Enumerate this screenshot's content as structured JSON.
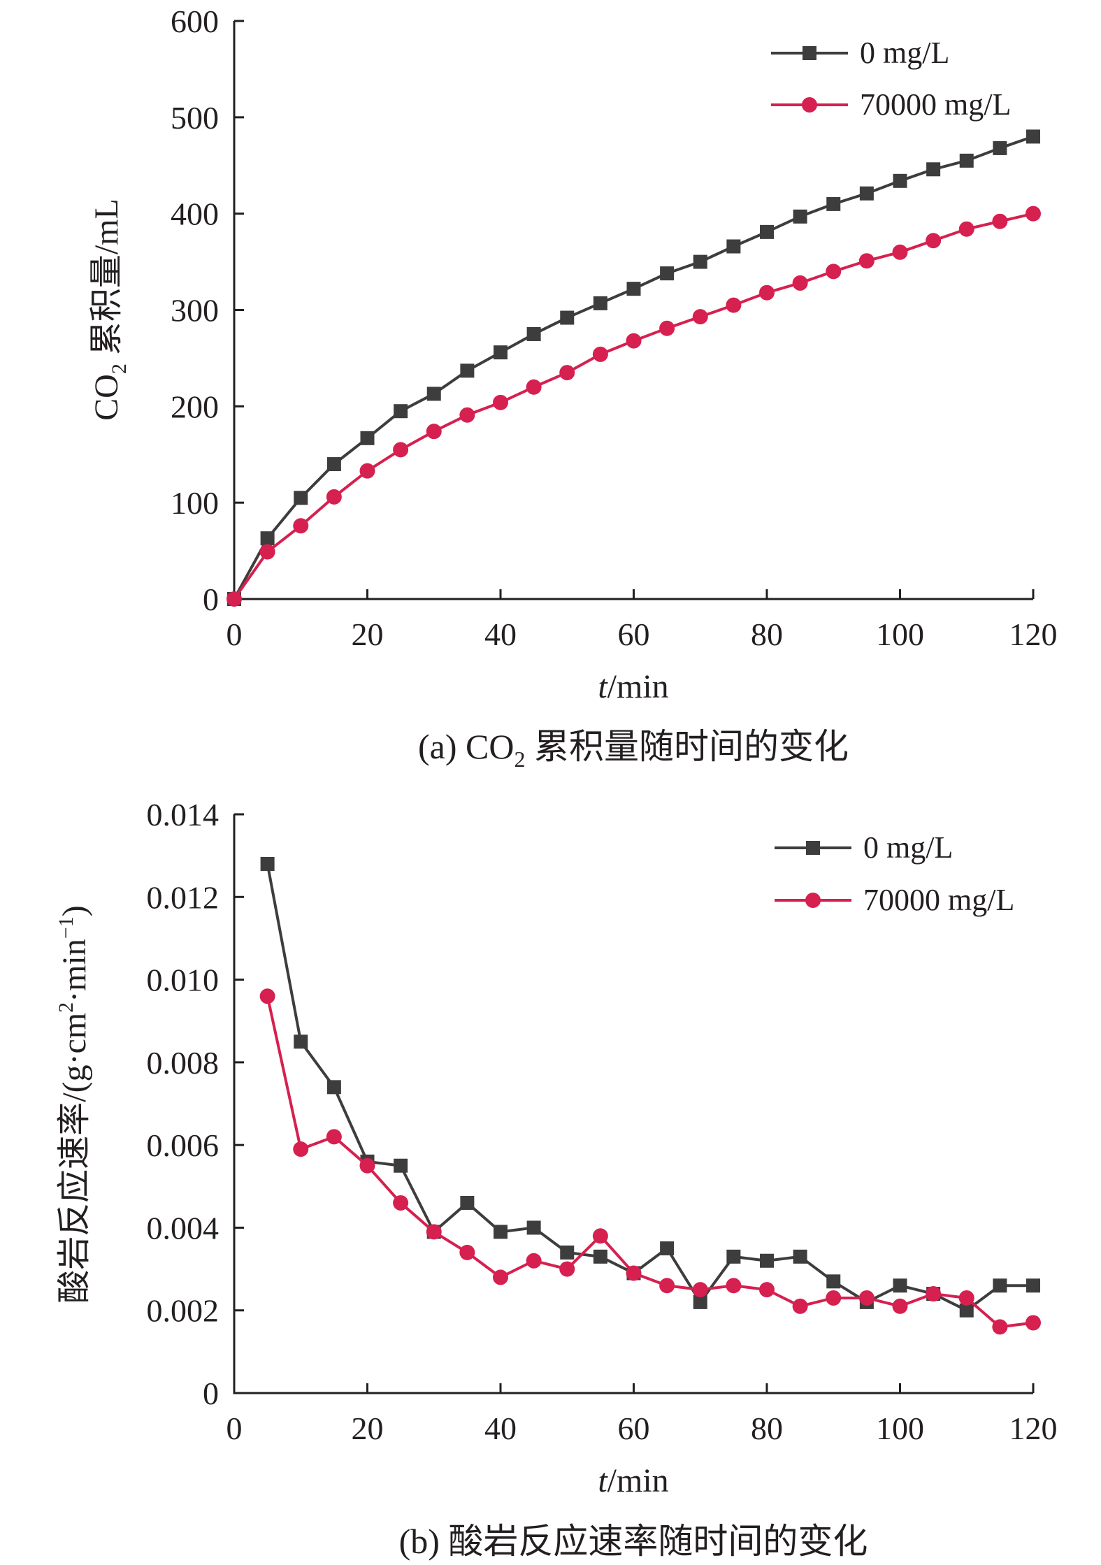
{
  "chart_data": [
    {
      "type": "line",
      "caption_prefix": "(a) CO",
      "caption_sub": "2",
      "caption_rest": " 累积量随时间的变化",
      "ylabel_prefix": "CO",
      "ylabel_sub": "2",
      "ylabel_rest": " 累积量/mL",
      "xlabel_italic": "t",
      "xlabel_rest": "/min",
      "xlim": [
        0,
        120
      ],
      "ylim": [
        0,
        600
      ],
      "xticks": [
        "0",
        "20",
        "40",
        "60",
        "80",
        "100",
        "120"
      ],
      "yticks": [
        "0",
        "100",
        "200",
        "300",
        "400",
        "500",
        "600"
      ],
      "legend_position": "top-right",
      "grid": false,
      "x": [
        0,
        5,
        10,
        15,
        20,
        25,
        30,
        35,
        40,
        45,
        50,
        55,
        60,
        65,
        70,
        75,
        80,
        85,
        90,
        95,
        100,
        105,
        110,
        115,
        120
      ],
      "series": [
        {
          "name": "0 mg/L",
          "color": "#3d3d3d",
          "marker": "square",
          "values": [
            0,
            63,
            105,
            140,
            167,
            195,
            213,
            237,
            256,
            275,
            292,
            307,
            322,
            338,
            350,
            366,
            381,
            397,
            410,
            421,
            434,
            446,
            455,
            468,
            480
          ]
        },
        {
          "name": "70000 mg/L",
          "color": "#d6204f",
          "marker": "circle",
          "values": [
            0,
            49,
            76,
            106,
            133,
            155,
            174,
            191,
            204,
            220,
            235,
            254,
            268,
            281,
            293,
            305,
            318,
            328,
            340,
            351,
            360,
            372,
            384,
            392,
            400
          ]
        }
      ]
    },
    {
      "type": "line",
      "caption": "(b) 酸岩反应速率随时间的变化",
      "ylabel_prefix": "酸岩反应速率/(g·cm",
      "ylabel_sup1": "2",
      "ylabel_mid": "·min",
      "ylabel_sup2": "−1",
      "ylabel_end": ")",
      "xlabel_italic": "t",
      "xlabel_rest": "/min",
      "xlim": [
        0,
        120
      ],
      "ylim": [
        0,
        0.014
      ],
      "xticks": [
        "0",
        "20",
        "40",
        "60",
        "80",
        "100",
        "120"
      ],
      "yticks": [
        "0",
        "0.002",
        "0.004",
        "0.006",
        "0.008",
        "0.010",
        "0.012",
        "0.014"
      ],
      "legend_position": "top-right",
      "grid": false,
      "x": [
        5,
        10,
        15,
        20,
        25,
        30,
        35,
        40,
        45,
        50,
        55,
        60,
        65,
        70,
        75,
        80,
        85,
        90,
        95,
        100,
        105,
        110,
        115,
        120
      ],
      "series": [
        {
          "name": "0 mg/L",
          "color": "#3d3d3d",
          "marker": "square",
          "values": [
            0.0128,
            0.0085,
            0.0074,
            0.0056,
            0.0055,
            0.0039,
            0.0046,
            0.0039,
            0.004,
            0.0034,
            0.0033,
            0.0029,
            0.0035,
            0.0022,
            0.0033,
            0.0032,
            0.0033,
            0.0027,
            0.0022,
            0.0026,
            0.0024,
            0.002,
            0.0026,
            0.0026
          ]
        },
        {
          "name": "70000 mg/L",
          "color": "#d6204f",
          "marker": "circle",
          "values": [
            0.0096,
            0.0059,
            0.0062,
            0.0055,
            0.0046,
            0.0039,
            0.0034,
            0.0028,
            0.0032,
            0.003,
            0.0038,
            0.0029,
            0.0026,
            0.0025,
            0.0026,
            0.0025,
            0.0021,
            0.0023,
            0.0023,
            0.0021,
            0.0024,
            0.0023,
            0.0016,
            0.0017
          ]
        }
      ]
    }
  ]
}
